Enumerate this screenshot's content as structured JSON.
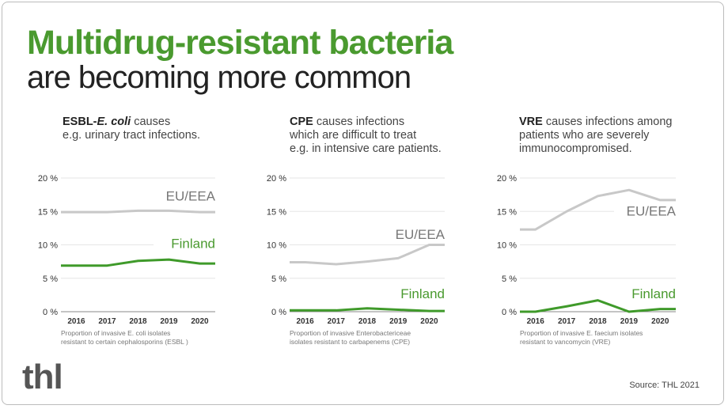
{
  "header": {
    "title": "Multidrug-resistant bacteria",
    "subtitle": "are becoming more common"
  },
  "footer": {
    "logo": "thl",
    "source": "Source: THL 2021"
  },
  "colors": {
    "accent": "#4a9a2f",
    "finland": "#3f9a2a",
    "eu_eea": "#c8c8c8"
  },
  "chart_data": [
    {
      "type": "line",
      "description_bold": "ESBL-",
      "description_bold_italic": "E. coli",
      "description_line1": " causes",
      "description_rest": [
        "e.g. urinary tract infections."
      ],
      "footnote": [
        "Proportion of invasive E. coli isolates",
        "resistant to certain cephalosporins (ESBL )"
      ],
      "x": [
        2016,
        2017,
        2018,
        2019,
        2020
      ],
      "xtick_labels": [
        "2016",
        "2017",
        "2018",
        "2019",
        "2020"
      ],
      "ytick_labels": [
        "0 %",
        "5 %",
        "10 %",
        "15 %",
        "20 %"
      ],
      "ylim": [
        0,
        20
      ],
      "grid": true,
      "series": [
        {
          "name": "EU/EEA",
          "values": [
            14.9,
            14.9,
            15.1,
            15.1,
            14.9
          ]
        },
        {
          "name": "Finland",
          "values": [
            6.9,
            6.9,
            7.6,
            7.8,
            7.2
          ]
        }
      ]
    },
    {
      "type": "line",
      "description_bold": "CPE",
      "description_bold_italic": "",
      "description_line1": " causes infections",
      "description_rest": [
        "which are difficult to treat",
        "e.g. in intensive care patients."
      ],
      "footnote": [
        "Proportion of invasive Enterobactericeae",
        "isolates resistant to carbapenems (CPE)"
      ],
      "x": [
        2016,
        2017,
        2018,
        2019,
        2020
      ],
      "xtick_labels": [
        "2016",
        "2017",
        "2018",
        "2019",
        "2020"
      ],
      "ytick_labels": [
        "0 %",
        "5 %",
        "10 %",
        "15 %",
        "20 %"
      ],
      "ylim": [
        0,
        20
      ],
      "grid": true,
      "series": [
        {
          "name": "EU/EEA",
          "values": [
            7.4,
            7.1,
            7.5,
            8.0,
            10.0
          ]
        },
        {
          "name": "Finland",
          "values": [
            0.2,
            0.2,
            0.5,
            0.3,
            0.1
          ]
        }
      ]
    },
    {
      "type": "line",
      "description_bold": "VRE",
      "description_bold_italic": "",
      "description_line1": " causes infections among",
      "description_rest": [
        "patients who are severely",
        "immunocompromised."
      ],
      "footnote": [
        "Proportion of invasive E. faecium isolates",
        "resistant to vancomycin (VRE)"
      ],
      "x": [
        2016,
        2017,
        2018,
        2019,
        2020
      ],
      "xtick_labels": [
        "2016",
        "2017",
        "2018",
        "2019",
        "2020"
      ],
      "ytick_labels": [
        "0 %",
        "5 %",
        "10 %",
        "15 %",
        "20 %"
      ],
      "ylim": [
        0,
        20
      ],
      "grid": true,
      "series": [
        {
          "name": "EU/EEA",
          "values": [
            12.3,
            15.0,
            17.3,
            18.2,
            16.7
          ]
        },
        {
          "name": "Finland",
          "values": [
            0.0,
            0.8,
            1.7,
            0.0,
            0.4
          ]
        }
      ]
    }
  ]
}
